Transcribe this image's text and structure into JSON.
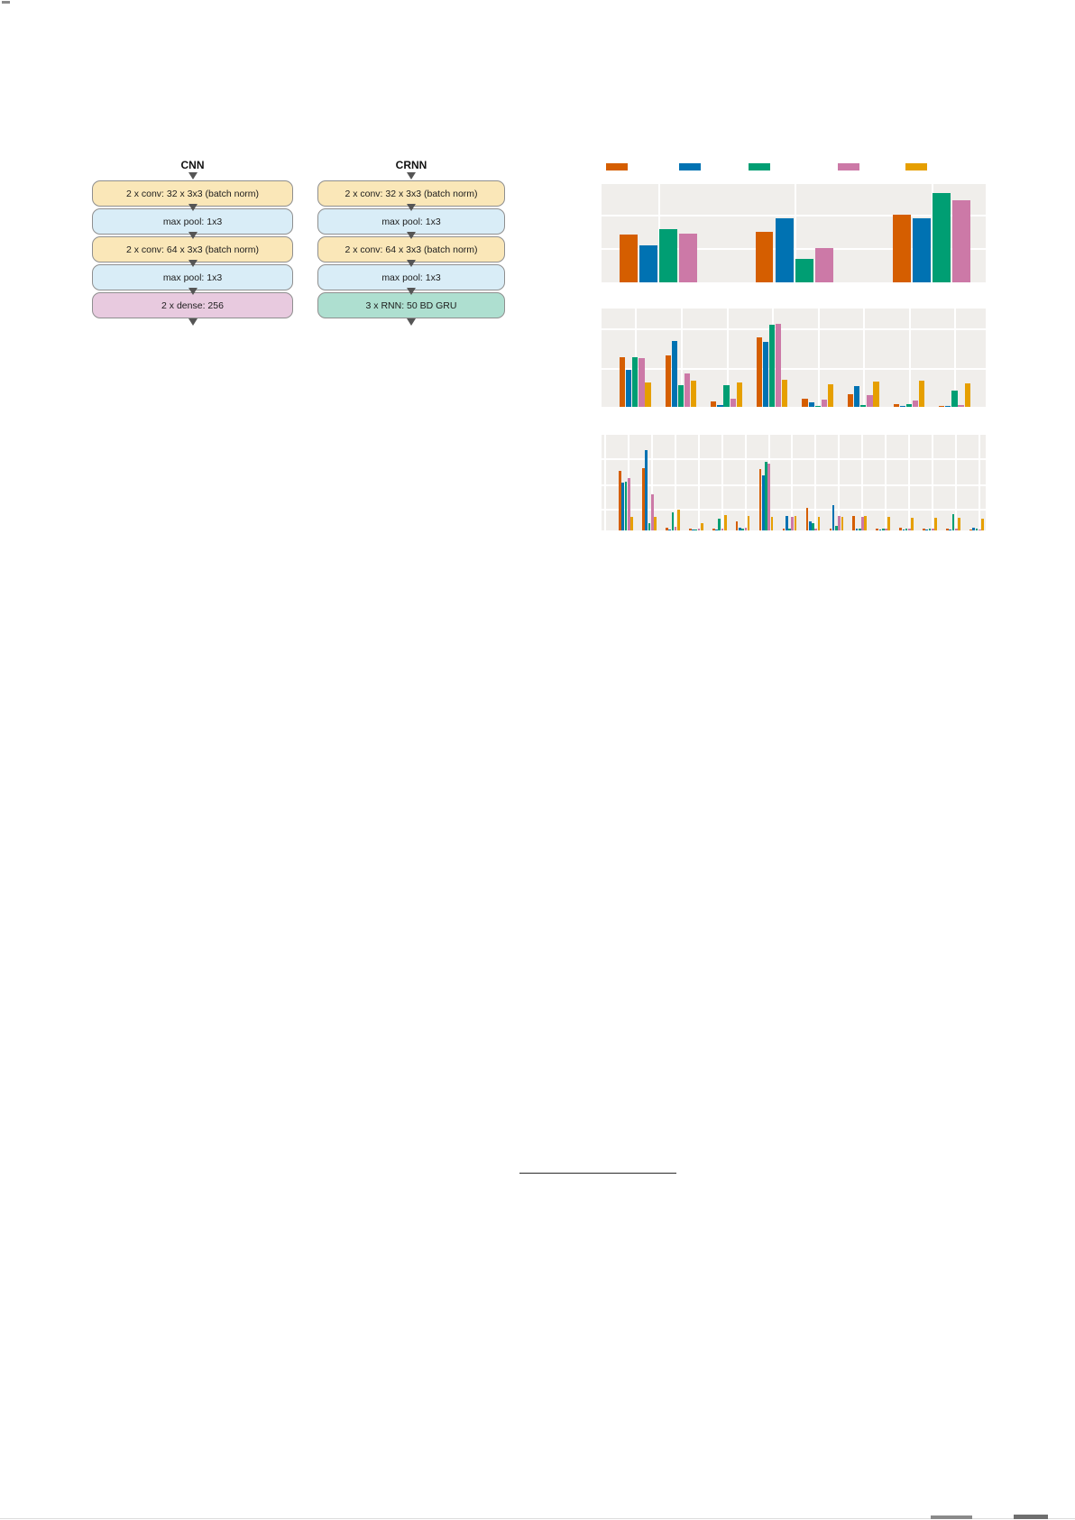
{
  "diagrams": {
    "cnn": {
      "title": "CNN",
      "boxes": [
        {
          "label": "2 x conv: 32 x 3x3 (batch norm)",
          "kind": "conv"
        },
        {
          "label": "max pool: 1x3",
          "kind": "pool"
        },
        {
          "label": "2 x conv: 64 x 3x3 (batch norm)",
          "kind": "conv"
        },
        {
          "label": "max pool: 1x3",
          "kind": "pool"
        },
        {
          "label": "2 x dense: 256",
          "kind": "dense"
        }
      ]
    },
    "crnn": {
      "title": "CRNN",
      "boxes": [
        {
          "label": "2 x conv: 32 x 3x3 (batch norm)",
          "kind": "conv"
        },
        {
          "label": "max pool: 1x3",
          "kind": "pool"
        },
        {
          "label": "2 x conv: 64 x 3x3 (batch norm)",
          "kind": "conv"
        },
        {
          "label": "max pool: 1x3",
          "kind": "pool"
        },
        {
          "label": "3 x RNN: 50 BD GRU",
          "kind": "rnn"
        }
      ]
    },
    "box_colors": {
      "conv": "#fae7b8",
      "pool": "#d9edf7",
      "dense": "#e8cadf",
      "rnn": "#aedfd0"
    }
  },
  "palette": {
    "vermillion": "#D55E00",
    "blue": "#0072B2",
    "green": "#009E73",
    "pink": "#CC79A7",
    "amber": "#E69F00"
  },
  "legend": {
    "note": "five color swatches, no visible text labels",
    "swatches": [
      "vermillion",
      "blue",
      "green",
      "pink",
      "amber"
    ]
  },
  "chart_data": [
    {
      "type": "bar",
      "title": "",
      "xlabel": "",
      "ylabel": "",
      "note": "no axis tick labels or text visible; values are estimated fractions of plot height",
      "ylim": [
        0,
        1
      ],
      "grid": true,
      "legend_position": "above, shared, unlabeled swatches",
      "categories": [
        "group-1",
        "group-2",
        "group-3"
      ],
      "series": [
        {
          "name": "vermillion",
          "values": [
            0.486,
            0.514,
            0.688
          ]
        },
        {
          "name": "blue",
          "values": [
            0.376,
            0.651,
            0.651
          ]
        },
        {
          "name": "green",
          "values": [
            0.541,
            0.239,
            0.908
          ]
        },
        {
          "name": "pink",
          "values": [
            0.495,
            0.349,
            0.835
          ]
        }
      ]
    },
    {
      "type": "bar",
      "title": "",
      "xlabel": "",
      "ylabel": "",
      "note": "no axis tick labels or text visible; values are estimated fractions of plot height",
      "ylim": [
        0,
        1
      ],
      "grid": true,
      "categories": [
        "g1",
        "g2",
        "g3",
        "g4",
        "g5",
        "g6",
        "g7",
        "g8"
      ],
      "series": [
        {
          "name": "vermillion",
          "values": [
            0.5,
            0.524,
            0.055,
            0.705,
            0.08,
            0.13,
            0.025,
            0.01
          ]
        },
        {
          "name": "blue",
          "values": [
            0.375,
            0.671,
            0.021,
            0.665,
            0.049,
            0.208,
            0.008,
            0.008
          ]
        },
        {
          "name": "green",
          "values": [
            0.503,
            0.217,
            0.222,
            0.839,
            0.012,
            0.021,
            0.03,
            0.168
          ]
        },
        {
          "name": "pink",
          "values": [
            0.497,
            0.339,
            0.085,
            0.845,
            0.07,
            0.116,
            0.064,
            0.02
          ]
        },
        {
          "name": "amber",
          "values": [
            0.247,
            0.268,
            0.244,
            0.274,
            0.232,
            0.259,
            0.263,
            0.239
          ]
        }
      ]
    },
    {
      "type": "bar",
      "title": "",
      "xlabel": "",
      "ylabel": "",
      "note": "no axis tick labels or text visible; values are estimated fractions of plot height",
      "ylim": [
        0,
        1
      ],
      "grid": true,
      "categories": [
        "g1",
        "g2",
        "g3",
        "g4",
        "g5",
        "g6",
        "g7",
        "g8",
        "g9",
        "g10",
        "g11",
        "g12",
        "g13",
        "g14",
        "g15",
        "g16"
      ],
      "series": [
        {
          "name": "vermillion",
          "values": [
            0.62,
            0.655,
            0.03,
            0.02,
            0.02,
            0.095,
            0.64,
            0.02,
            0.238,
            0.02,
            0.153,
            0.02,
            0.03,
            0.02,
            0.02,
            0.01
          ]
        },
        {
          "name": "blue",
          "values": [
            0.5,
            0.835,
            0.01,
            0.01,
            0.01,
            0.03,
            0.577,
            0.153,
            0.09,
            0.26,
            0.02,
            0.01,
            0.01,
            0.01,
            0.01,
            0.03
          ]
        },
        {
          "name": "green",
          "values": [
            0.505,
            0.075,
            0.185,
            0.01,
            0.12,
            0.02,
            0.72,
            0.02,
            0.075,
            0.05,
            0.02,
            0.02,
            0.02,
            0.02,
            0.17,
            0.02
          ]
        },
        {
          "name": "pink",
          "values": [
            0.545,
            0.373,
            0.04,
            0.02,
            0.02,
            0.03,
            0.7,
            0.138,
            0.02,
            0.15,
            0.14,
            0.02,
            0.02,
            0.02,
            0.02,
            0.01
          ]
        },
        {
          "name": "amber",
          "values": [
            0.138,
            0.138,
            0.216,
            0.08,
            0.16,
            0.15,
            0.145,
            0.153,
            0.138,
            0.14,
            0.153,
            0.14,
            0.13,
            0.13,
            0.13,
            0.12
          ]
        }
      ]
    }
  ]
}
